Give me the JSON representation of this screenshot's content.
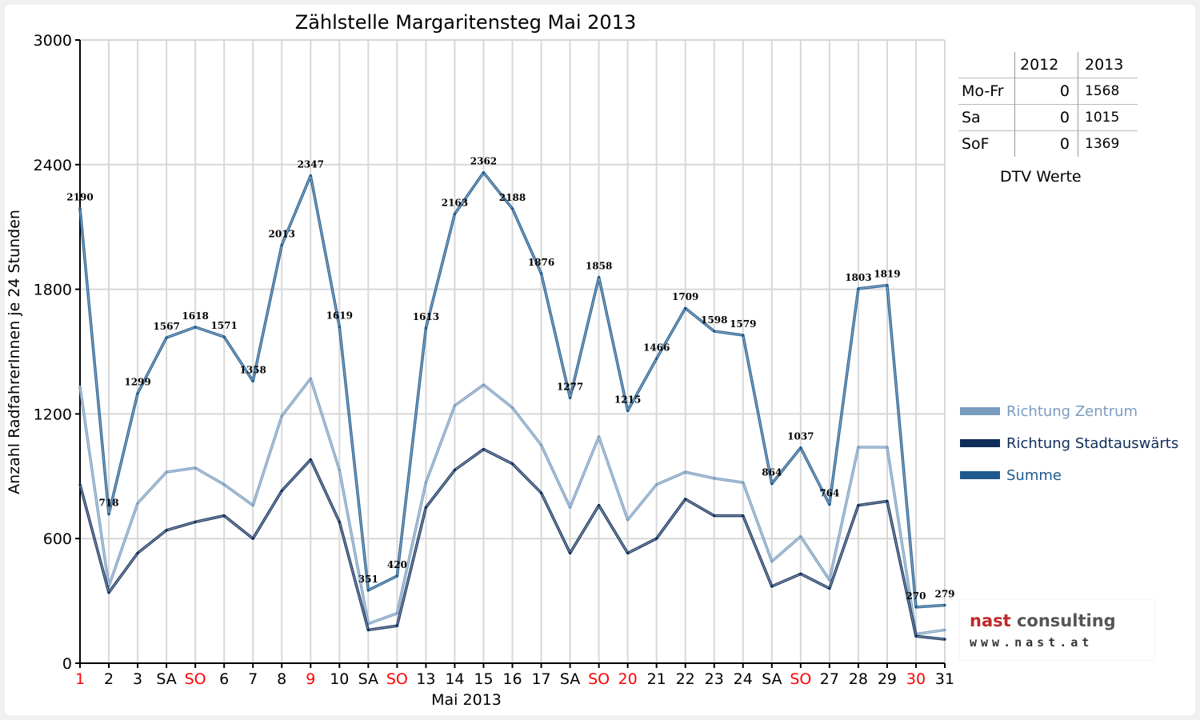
{
  "chart_data": {
    "type": "line",
    "title": "Zählstelle Margaritensteg Mai 2013",
    "xlabel": "Mai 2013",
    "ylabel": "Anzahl RadfahrerInnen je 24 Stunden",
    "ylim": [
      0,
      3000
    ],
    "yticks": [
      0,
      600,
      1200,
      1800,
      2400,
      3000
    ],
    "grid": true,
    "legend_position": "right",
    "categories": [
      "1",
      "2",
      "3",
      "SA",
      "SO",
      "6",
      "7",
      "8",
      "9",
      "10",
      "SA",
      "SO",
      "13",
      "14",
      "15",
      "16",
      "17",
      "SA",
      "SO",
      "20",
      "21",
      "22",
      "23",
      "24",
      "SA",
      "SO",
      "27",
      "28",
      "29",
      "30",
      "31"
    ],
    "highlight_categories": [
      0,
      4,
      8,
      11,
      18,
      19,
      25,
      29
    ],
    "series": [
      {
        "name": "Richtung Zentrum",
        "color": "#7a9cbf",
        "values": [
          1330,
          370,
          770,
          920,
          940,
          860,
          760,
          1190,
          1370,
          930,
          190,
          240,
          870,
          1240,
          1340,
          1230,
          1050,
          750,
          1090,
          690,
          860,
          920,
          890,
          870,
          490,
          610,
          400,
          1040,
          1040,
          140,
          160
        ]
      },
      {
        "name": "Richtung Stadtauswärts",
        "color": "#0f2d5a",
        "values": [
          860,
          340,
          530,
          640,
          680,
          710,
          600,
          830,
          980,
          680,
          160,
          180,
          750,
          930,
          1030,
          960,
          820,
          530,
          760,
          530,
          600,
          790,
          710,
          710,
          370,
          430,
          360,
          760,
          780,
          130,
          115
        ]
      },
      {
        "name": "Summe",
        "color": "#1f5a8c",
        "values": [
          2190,
          718,
          1299,
          1567,
          1618,
          1571,
          1358,
          2013,
          2347,
          1619,
          351,
          420,
          1613,
          2163,
          2362,
          2188,
          1876,
          1277,
          1858,
          1215,
          1466,
          1709,
          1598,
          1579,
          864,
          1037,
          764,
          1803,
          1819,
          270,
          279
        ]
      }
    ],
    "data_labels": [
      "2190",
      "718",
      "1299",
      "1567",
      "1618",
      "1571",
      "1358",
      "2013",
      "2347",
      "1619",
      "351",
      "420",
      "1613",
      "2163",
      "2362",
      "2188",
      "1876",
      "1277",
      "1858",
      "1215",
      "1466",
      "1709",
      "1598",
      "1579",
      "864",
      "1037",
      "764",
      "1803",
      "1819",
      "270",
      "279"
    ]
  },
  "dtv_table": {
    "headers": [
      "",
      "2012",
      "2013"
    ],
    "rows": [
      {
        "label": "Mo-Fr",
        "v2012": "0",
        "v2013": "1568"
      },
      {
        "label": "Sa",
        "v2012": "0",
        "v2013": "1015"
      },
      {
        "label": "SoF",
        "v2012": "0",
        "v2013": "1369"
      }
    ],
    "caption": "DTV Werte"
  },
  "logo": {
    "name_part1": "nast",
    "name_part2": " consulting",
    "url": "www.nast.at"
  },
  "colors": {
    "holiday": "#ff0000",
    "grid": "#d8d8d8",
    "axis": "#000000"
  }
}
